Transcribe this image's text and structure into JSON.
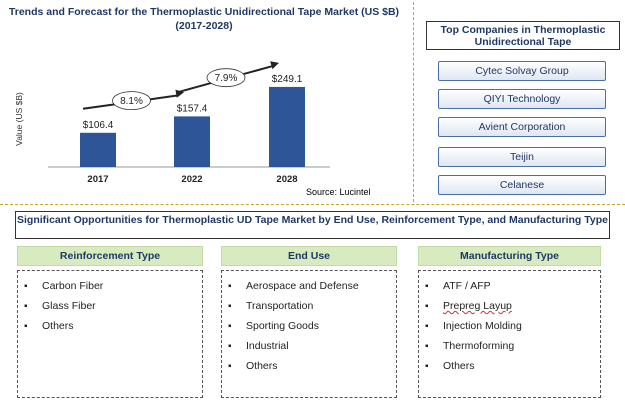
{
  "chart_data": {
    "type": "bar",
    "title": "Trends and Forecast for the Thermoplastic Unidirectional Tape Market (US $B)",
    "subtitle": "(2017-2028)",
    "ylabel": "Value (US $B)",
    "categories": [
      "2017",
      "2022",
      "2028"
    ],
    "values": [
      106.4,
      157.4,
      249.1
    ],
    "data_labels": [
      "$106.4",
      "$157.4",
      "$249.1"
    ],
    "growth_labels": [
      "8.1%",
      "7.9%"
    ],
    "bar_color": "#2e5597",
    "ylim": [
      0,
      280
    ],
    "grid": false
  },
  "source": "Source: Lucintel",
  "companies": {
    "title": "Top Companies in Thermoplastic Unidirectional Tape",
    "items": [
      "Cytec Solvay Group",
      "QIYI Technology",
      "Avient Corporation",
      "Teijin",
      "Celanese"
    ]
  },
  "opportunities": {
    "title": "Significant Opportunities for Thermoplastic UD Tape Market by End Use, Reinforcement Type, and Manufacturing Type",
    "columns": [
      {
        "header": "Reinforcement Type",
        "items": [
          "Carbon Fiber",
          "Glass Fiber",
          "Others"
        ]
      },
      {
        "header": "End Use",
        "items": [
          "Aerospace and Defense",
          "Transportation",
          "Sporting Goods",
          "Industrial",
          "Others"
        ]
      },
      {
        "header": "Manufacturing Type",
        "items": [
          "ATF / AFP",
          "Prepreg Layup",
          "Injection Molding",
          "Thermoforming",
          "Others"
        ]
      }
    ]
  },
  "colors": {
    "accent": "#1f3864",
    "header_bg": "#d8ebc0",
    "separator": "#c9a12d"
  }
}
